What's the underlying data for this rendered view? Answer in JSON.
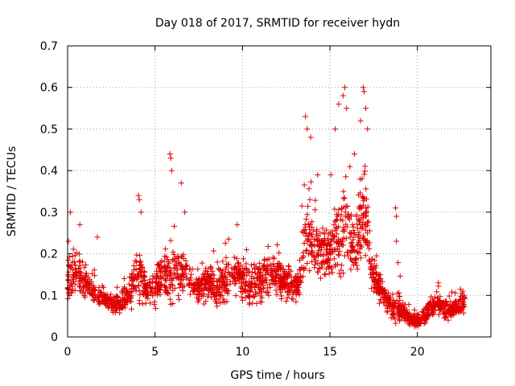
{
  "chart_data": {
    "type": "scatter",
    "title": "Day 018 of 2017, SRMTID for receiver hydn",
    "xlabel": "GPS time / hours",
    "ylabel": "SRMTID / TECUs",
    "xlim": [
      0,
      24.2
    ],
    "ylim": [
      0,
      0.7
    ],
    "x_ticks": [
      0,
      5,
      10,
      15,
      20
    ],
    "y_ticks": [
      0,
      0.1,
      0.2,
      0.3,
      0.4,
      0.5,
      0.6,
      0.7
    ],
    "x_tick_labels": [
      "0",
      "5",
      "10",
      "15",
      "20"
    ],
    "y_tick_labels": [
      "0",
      "0.1",
      "0.2",
      "0.3",
      "0.4",
      "0.5",
      "0.6",
      "0.7"
    ],
    "grid": true,
    "marker": "plus",
    "color": "#e00000",
    "series": [
      {
        "name": "SRMTID",
        "envelope": {
          "x": [
            0,
            0.3,
            0.6,
            1,
            1.5,
            2,
            2.5,
            3,
            3.5,
            3.8,
            4.1,
            4.5,
            5,
            5.5,
            5.9,
            6.3,
            6.8,
            7.3,
            8,
            8.5,
            9,
            9.6,
            10.2,
            10.8,
            11.5,
            12,
            12.6,
            13.1,
            13.4,
            13.6,
            13.9,
            14.2,
            14.6,
            15,
            15.3,
            15.6,
            15.9,
            16.2,
            16.5,
            16.8,
            17.1,
            17.4,
            17.8,
            18.2,
            18.6,
            18.9,
            19.2,
            19.6,
            20,
            20.4,
            20.8,
            21.2,
            21.7,
            22.2,
            22.7
          ],
          "median": [
            0.13,
            0.15,
            0.16,
            0.14,
            0.1,
            0.1,
            0.08,
            0.08,
            0.1,
            0.13,
            0.15,
            0.12,
            0.12,
            0.13,
            0.15,
            0.16,
            0.15,
            0.11,
            0.13,
            0.12,
            0.13,
            0.15,
            0.13,
            0.13,
            0.15,
            0.15,
            0.13,
            0.12,
            0.16,
            0.25,
            0.22,
            0.2,
            0.2,
            0.2,
            0.25,
            0.25,
            0.27,
            0.23,
            0.22,
            0.27,
            0.3,
            0.15,
            0.12,
            0.09,
            0.07,
            0.07,
            0.06,
            0.04,
            0.04,
            0.05,
            0.07,
            0.08,
            0.06,
            0.07,
            0.08
          ],
          "spread": [
            0.07,
            0.08,
            0.07,
            0.06,
            0.04,
            0.04,
            0.03,
            0.03,
            0.05,
            0.07,
            0.09,
            0.06,
            0.06,
            0.07,
            0.1,
            0.08,
            0.07,
            0.05,
            0.06,
            0.06,
            0.07,
            0.07,
            0.06,
            0.07,
            0.07,
            0.07,
            0.05,
            0.05,
            0.1,
            0.12,
            0.1,
            0.09,
            0.08,
            0.08,
            0.12,
            0.14,
            0.16,
            0.12,
            0.11,
            0.16,
            0.14,
            0.06,
            0.05,
            0.04,
            0.04,
            0.07,
            0.03,
            0.02,
            0.02,
            0.03,
            0.03,
            0.03,
            0.03,
            0.03,
            0.03
          ],
          "samples_per_hour": 95
        },
        "peaks": [
          {
            "x": 0.05,
            "y": 0.23
          },
          {
            "x": 0.7,
            "y": 0.27
          },
          {
            "x": 1.7,
            "y": 0.24
          },
          {
            "x": 4.05,
            "y": 0.34
          },
          {
            "x": 4.1,
            "y": 0.33
          },
          {
            "x": 4.2,
            "y": 0.3
          },
          {
            "x": 5.85,
            "y": 0.44
          },
          {
            "x": 5.9,
            "y": 0.43
          },
          {
            "x": 5.95,
            "y": 0.4
          },
          {
            "x": 6.5,
            "y": 0.37
          },
          {
            "x": 6.7,
            "y": 0.3
          },
          {
            "x": 9.7,
            "y": 0.27
          },
          {
            "x": 13.6,
            "y": 0.53
          },
          {
            "x": 13.7,
            "y": 0.5
          },
          {
            "x": 13.9,
            "y": 0.48
          },
          {
            "x": 14.3,
            "y": 0.39
          },
          {
            "x": 15.05,
            "y": 0.39
          },
          {
            "x": 15.3,
            "y": 0.5
          },
          {
            "x": 15.5,
            "y": 0.56
          },
          {
            "x": 15.75,
            "y": 0.58
          },
          {
            "x": 15.85,
            "y": 0.6
          },
          {
            "x": 15.95,
            "y": 0.55
          },
          {
            "x": 16.4,
            "y": 0.44
          },
          {
            "x": 16.75,
            "y": 0.52
          },
          {
            "x": 16.9,
            "y": 0.6
          },
          {
            "x": 16.95,
            "y": 0.59
          },
          {
            "x": 17.05,
            "y": 0.55
          },
          {
            "x": 17.15,
            "y": 0.5
          },
          {
            "x": 18.75,
            "y": 0.31
          },
          {
            "x": 18.8,
            "y": 0.29
          },
          {
            "x": 18.8,
            "y": 0.23
          },
          {
            "x": 21.2,
            "y": 0.13
          },
          {
            "x": 22.6,
            "y": 0.11
          }
        ]
      }
    ]
  }
}
